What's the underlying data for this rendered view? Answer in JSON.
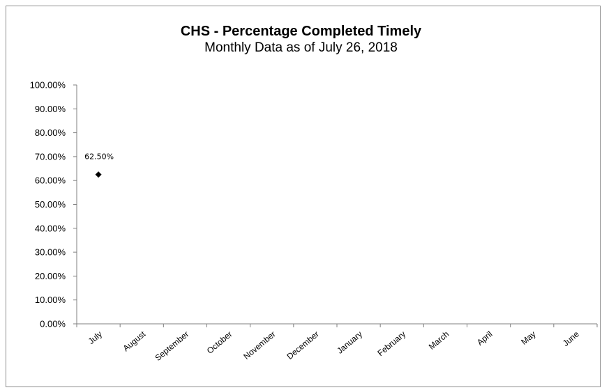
{
  "chart_data": {
    "type": "scatter",
    "title": "CHS - Percentage Completed Timely",
    "subtitle": "Monthly Data as of July 26, 2018",
    "categories": [
      "July",
      "August",
      "September",
      "October",
      "November",
      "December",
      "January",
      "February",
      "March",
      "April",
      "May",
      "June"
    ],
    "y_ticks": [
      "0.00%",
      "10.00%",
      "20.00%",
      "30.00%",
      "40.00%",
      "50.00%",
      "60.00%",
      "70.00%",
      "80.00%",
      "90.00%",
      "100.00%"
    ],
    "ylim": [
      0,
      100
    ],
    "grid": false,
    "series": [
      {
        "values": [
          62.5,
          null,
          null,
          null,
          null,
          null,
          null,
          null,
          null,
          null,
          null,
          null
        ],
        "labels": [
          "62.50%",
          null,
          null,
          null,
          null,
          null,
          null,
          null,
          null,
          null,
          null,
          null
        ],
        "color": "#000000",
        "marker": "diamond"
      }
    ]
  }
}
